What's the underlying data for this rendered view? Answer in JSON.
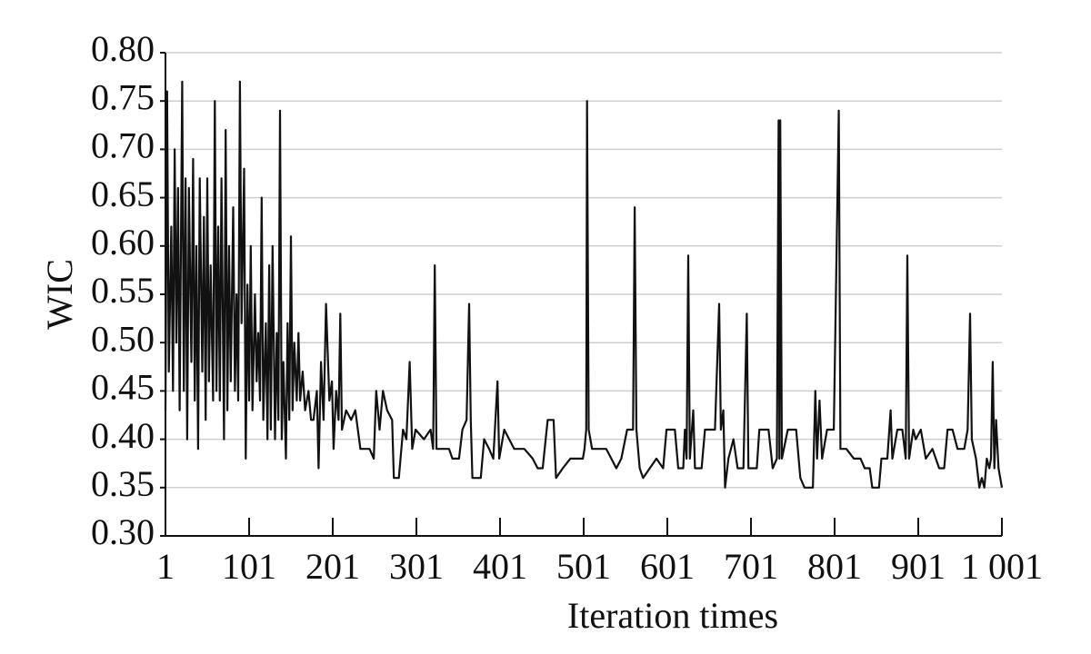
{
  "chart_data": {
    "type": "line",
    "x_label": "Iteration times",
    "y_label": "WIC",
    "xlim": [
      1,
      1001
    ],
    "ylim": [
      0.3,
      0.8
    ],
    "xticks": [
      1,
      101,
      201,
      301,
      401,
      501,
      601,
      701,
      801,
      901,
      {
        "value": 1001,
        "label": "1 001"
      }
    ],
    "yticks": [
      {
        "value": 0.3,
        "label": "0.30"
      },
      {
        "value": 0.35,
        "label": "0.35"
      },
      {
        "value": 0.4,
        "label": "0.40"
      },
      {
        "value": 0.45,
        "label": "0.45"
      },
      {
        "value": 0.5,
        "label": "0.50"
      },
      {
        "value": 0.55,
        "label": "0.55"
      },
      {
        "value": 0.6,
        "label": "0.60"
      },
      {
        "value": 0.65,
        "label": "0.65"
      },
      {
        "value": 0.7,
        "label": "0.70"
      },
      {
        "value": 0.75,
        "label": "0.75"
      },
      {
        "value": 0.8,
        "label": "0.80"
      }
    ],
    "grid": true,
    "series": [
      {
        "color": "#111111",
        "x": [
          1,
          3,
          5,
          8,
          10,
          12,
          14,
          16,
          18,
          21,
          23,
          25,
          27,
          29,
          32,
          34,
          36,
          38,
          40,
          42,
          45,
          47,
          49,
          51,
          53,
          55,
          58,
          60,
          62,
          64,
          66,
          68,
          71,
          73,
          75,
          77,
          79,
          82,
          84,
          86,
          88,
          90,
          92,
          95,
          97,
          99,
          101,
          103,
          105,
          108,
          110,
          112,
          114,
          116,
          118,
          121,
          123,
          125,
          127,
          129,
          132,
          134,
          136,
          138,
          140,
          142,
          145,
          147,
          149,
          151,
          153,
          155,
          158,
          160,
          162,
          165,
          168,
          172,
          175,
          178,
          182,
          184,
          187,
          190,
          193,
          197,
          200,
          202,
          205,
          208,
          210,
          212,
          217,
          223,
          228,
          234,
          245,
          250,
          253,
          257,
          261,
          266,
          272,
          274,
          280,
          285,
          289,
          293,
          296,
          300,
          310,
          318,
          321,
          323,
          325,
          340,
          344,
          352,
          356,
          361,
          364,
          366,
          368,
          378,
          382,
          388,
          393,
          398,
          400,
          406,
          412,
          418,
          430,
          440,
          446,
          452,
          458,
          465,
          468,
          476,
          485,
          500,
          502,
          504,
          505,
          507,
          511,
          528,
          534,
          540,
          546,
          553,
          560,
          562,
          564,
          568,
          572,
          580,
          588,
          596,
          600,
          610,
          614,
          620,
          622,
          624,
          626,
          628,
          632,
          634,
          642,
          646,
          658,
          663,
          665,
          668,
          670,
          674,
          680,
          685,
          692,
          696,
          698,
          708,
          711,
          722,
          727,
          732,
          734,
          735,
          736,
          738,
          745,
          755,
          760,
          765,
          775,
          778,
          780,
          783,
          786,
          792,
          800,
          806,
          808,
          815,
          824,
          832,
          837,
          843,
          846,
          854,
          857,
          864,
          868,
          870,
          876,
          882,
          886,
          888,
          890,
          895,
          898,
          904,
          910,
          918,
          926,
          932,
          936,
          942,
          948,
          956,
          960,
          963,
          965,
          970,
          974,
          977,
          980,
          983,
          986,
          988,
          990,
          992,
          994,
          997,
          1001
        ],
        "values": [
          0.43,
          0.76,
          0.47,
          0.62,
          0.45,
          0.7,
          0.5,
          0.66,
          0.43,
          0.77,
          0.45,
          0.67,
          0.4,
          0.66,
          0.48,
          0.69,
          0.44,
          0.6,
          0.39,
          0.67,
          0.47,
          0.63,
          0.42,
          0.67,
          0.46,
          0.58,
          0.44,
          0.75,
          0.45,
          0.62,
          0.44,
          0.67,
          0.4,
          0.72,
          0.43,
          0.6,
          0.46,
          0.64,
          0.45,
          0.55,
          0.44,
          0.77,
          0.52,
          0.68,
          0.38,
          0.56,
          0.44,
          0.6,
          0.43,
          0.55,
          0.46,
          0.51,
          0.44,
          0.65,
          0.42,
          0.52,
          0.4,
          0.58,
          0.41,
          0.6,
          0.4,
          0.51,
          0.42,
          0.74,
          0.4,
          0.48,
          0.38,
          0.52,
          0.42,
          0.61,
          0.43,
          0.5,
          0.44,
          0.51,
          0.44,
          0.47,
          0.43,
          0.45,
          0.42,
          0.42,
          0.45,
          0.37,
          0.48,
          0.42,
          0.54,
          0.44,
          0.46,
          0.39,
          0.45,
          0.42,
          0.53,
          0.41,
          0.43,
          0.42,
          0.43,
          0.39,
          0.39,
          0.38,
          0.45,
          0.41,
          0.45,
          0.43,
          0.42,
          0.36,
          0.36,
          0.41,
          0.4,
          0.48,
          0.39,
          0.41,
          0.4,
          0.41,
          0.39,
          0.58,
          0.39,
          0.39,
          0.38,
          0.38,
          0.41,
          0.42,
          0.54,
          0.42,
          0.36,
          0.36,
          0.4,
          0.39,
          0.38,
          0.46,
          0.38,
          0.41,
          0.4,
          0.39,
          0.39,
          0.38,
          0.37,
          0.37,
          0.42,
          0.42,
          0.36,
          0.37,
          0.38,
          0.38,
          0.39,
          0.41,
          0.75,
          0.41,
          0.39,
          0.39,
          0.38,
          0.37,
          0.38,
          0.41,
          0.41,
          0.64,
          0.41,
          0.37,
          0.36,
          0.37,
          0.38,
          0.37,
          0.41,
          0.41,
          0.37,
          0.37,
          0.41,
          0.38,
          0.59,
          0.38,
          0.43,
          0.37,
          0.37,
          0.41,
          0.41,
          0.54,
          0.41,
          0.43,
          0.35,
          0.38,
          0.4,
          0.37,
          0.37,
          0.53,
          0.37,
          0.37,
          0.41,
          0.41,
          0.37,
          0.38,
          0.73,
          0.38,
          0.73,
          0.38,
          0.41,
          0.41,
          0.36,
          0.35,
          0.35,
          0.45,
          0.38,
          0.44,
          0.38,
          0.41,
          0.41,
          0.74,
          0.39,
          0.39,
          0.38,
          0.38,
          0.37,
          0.37,
          0.35,
          0.35,
          0.38,
          0.38,
          0.43,
          0.38,
          0.41,
          0.41,
          0.38,
          0.59,
          0.38,
          0.41,
          0.4,
          0.41,
          0.38,
          0.39,
          0.37,
          0.37,
          0.41,
          0.41,
          0.39,
          0.39,
          0.41,
          0.53,
          0.4,
          0.38,
          0.35,
          0.36,
          0.35,
          0.38,
          0.37,
          0.38,
          0.48,
          0.37,
          0.42,
          0.37,
          0.35
        ]
      }
    ]
  }
}
